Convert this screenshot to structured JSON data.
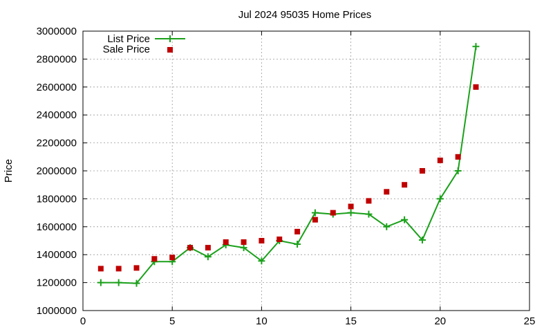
{
  "chart_data": {
    "type": "line",
    "title": "Jul 2024 95035 Home Prices",
    "xlabel": "",
    "ylabel": "Price",
    "xlim": [
      0,
      25
    ],
    "ylim": [
      1000000,
      3000000
    ],
    "xticks": [
      0,
      5,
      10,
      15,
      20,
      25
    ],
    "yticks": [
      1000000,
      1200000,
      1400000,
      1600000,
      1800000,
      2000000,
      2200000,
      2400000,
      2600000,
      2800000,
      3000000
    ],
    "grid": true,
    "legend_position": "top-left",
    "x": [
      1,
      2,
      3,
      4,
      5,
      6,
      7,
      8,
      9,
      10,
      11,
      12,
      13,
      14,
      15,
      16,
      17,
      18,
      19,
      20,
      21,
      22
    ],
    "series": [
      {
        "name": "List Price",
        "style": "line+cross",
        "color": "#1aa01a",
        "values": [
          1200000,
          1200000,
          1195000,
          1350000,
          1350000,
          1450000,
          1385000,
          1470000,
          1450000,
          1355000,
          1500000,
          1475000,
          1700000,
          1690000,
          1700000,
          1690000,
          1600000,
          1650000,
          1505000,
          1800000,
          2000000,
          2890000
        ]
      },
      {
        "name": "Sale Price",
        "style": "square-marker",
        "color": "#c00000",
        "values": [
          1300000,
          1300000,
          1305000,
          1370000,
          1380000,
          1450000,
          1450000,
          1490000,
          1490000,
          1500000,
          1510000,
          1565000,
          1650000,
          1700000,
          1745000,
          1785000,
          1850000,
          1900000,
          2000000,
          2075000,
          2100000,
          2600000
        ]
      }
    ]
  }
}
